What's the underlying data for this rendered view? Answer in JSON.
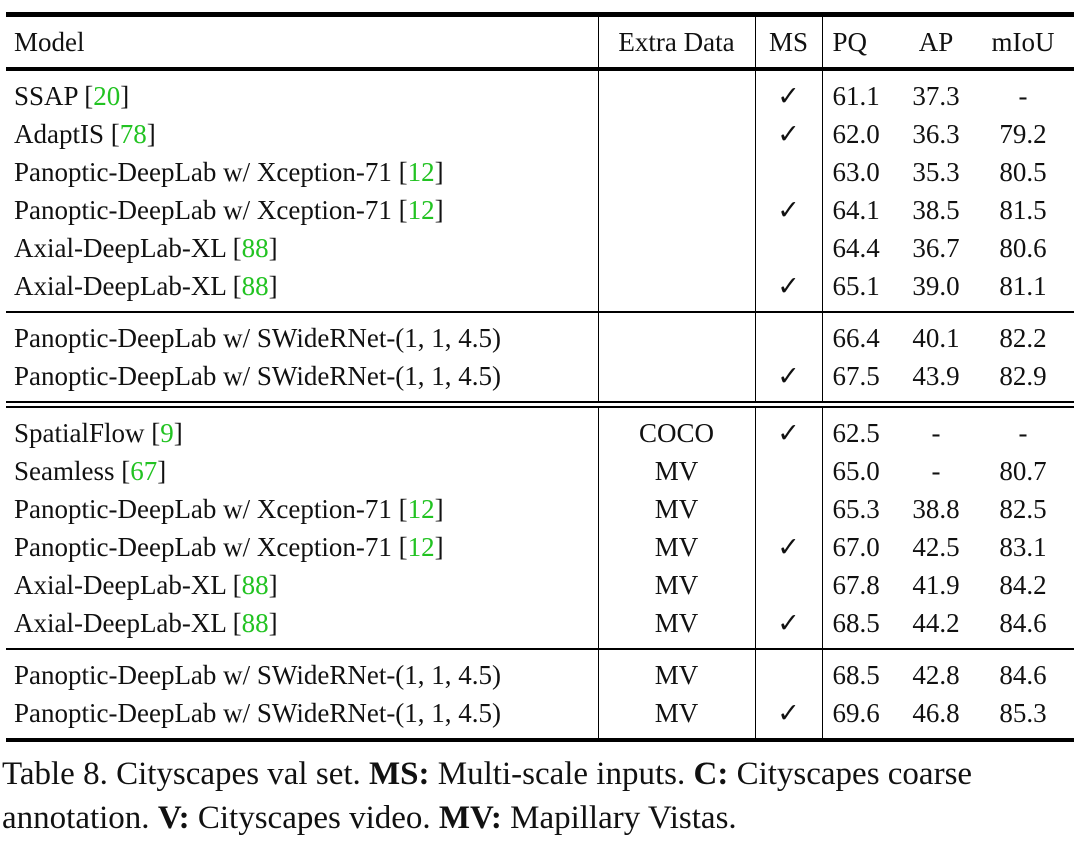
{
  "table": {
    "header": [
      "Model",
      "Extra Data",
      "MS",
      "PQ",
      "AP",
      "mIoU"
    ],
    "citation_brackets": [
      "[",
      "]"
    ],
    "groups": [
      [
        {
          "model": "SSAP",
          "ref": "20",
          "ms": "✓",
          "pq": "61.1",
          "ap": "37.3",
          "miou": "-"
        },
        {
          "model": "AdaptIS",
          "ref": "78",
          "ms": "✓",
          "pq": "62.0",
          "ap": "36.3",
          "miou": "79.2"
        },
        {
          "model": "Panoptic-DeepLab w/ Xception-71",
          "ref": "12",
          "pq": "63.0",
          "ap": "35.3",
          "miou": "80.5"
        },
        {
          "model": "Panoptic-DeepLab w/ Xception-71",
          "ref": "12",
          "ms": "✓",
          "pq": "64.1",
          "ap": "38.5",
          "miou": "81.5"
        },
        {
          "model": "Axial-DeepLab-XL",
          "ref": "88",
          "pq": "64.4",
          "ap": "36.7",
          "miou": "80.6"
        },
        {
          "model": "Axial-DeepLab-XL",
          "ref": "88",
          "ms": "✓",
          "pq": "65.1",
          "ap": "39.0",
          "miou": "81.1"
        }
      ],
      [
        {
          "model": "Panoptic-DeepLab w/ SWideRNet-(1, 1, 4.5)",
          "pq": "66.4",
          "ap": "40.1",
          "miou": "82.2"
        },
        {
          "model": "Panoptic-DeepLab w/ SWideRNet-(1, 1, 4.5)",
          "ms": "✓",
          "pq": "67.5",
          "ap": "43.9",
          "miou": "82.9"
        }
      ],
      [
        {
          "model": "SpatialFlow",
          "ref": "9",
          "extra": "COCO",
          "ms": "✓",
          "pq": "62.5",
          "ap": "-",
          "miou": "-"
        },
        {
          "model": "Seamless",
          "ref": "67",
          "extra": "MV",
          "pq": "65.0",
          "ap": "-",
          "miou": "80.7"
        },
        {
          "model": "Panoptic-DeepLab w/ Xception-71",
          "ref": "12",
          "extra": "MV",
          "pq": "65.3",
          "ap": "38.8",
          "miou": "82.5"
        },
        {
          "model": "Panoptic-DeepLab w/ Xception-71",
          "ref": "12",
          "extra": "MV",
          "ms": "✓",
          "pq": "67.0",
          "ap": "42.5",
          "miou": "83.1"
        },
        {
          "model": "Axial-DeepLab-XL",
          "ref": "88",
          "extra": "MV",
          "pq": "67.8",
          "ap": "41.9",
          "miou": "84.2"
        },
        {
          "model": "Axial-DeepLab-XL",
          "ref": "88",
          "extra": "MV",
          "ms": "✓",
          "pq": "68.5",
          "ap": "44.2",
          "miou": "84.6"
        }
      ],
      [
        {
          "model": "Panoptic-DeepLab w/ SWideRNet-(1, 1, 4.5)",
          "extra": "MV",
          "pq": "68.5",
          "ap": "42.8",
          "miou": "84.6"
        },
        {
          "model": "Panoptic-DeepLab w/ SWideRNet-(1, 1, 4.5)",
          "extra": "MV",
          "ms": "✓",
          "pq": "69.6",
          "ap": "46.8",
          "miou": "85.3"
        }
      ]
    ]
  },
  "caption": {
    "label": "Table 8. Cityscapes val set.",
    "items": [
      {
        "key": "MS:",
        "text": "Multi-scale inputs."
      },
      {
        "key": "C:",
        "text": "Cityscapes coarse annotation."
      },
      {
        "key": "V:",
        "text": "Cityscapes video."
      },
      {
        "key": "MV:",
        "text": "Mapillary Vistas."
      }
    ]
  }
}
